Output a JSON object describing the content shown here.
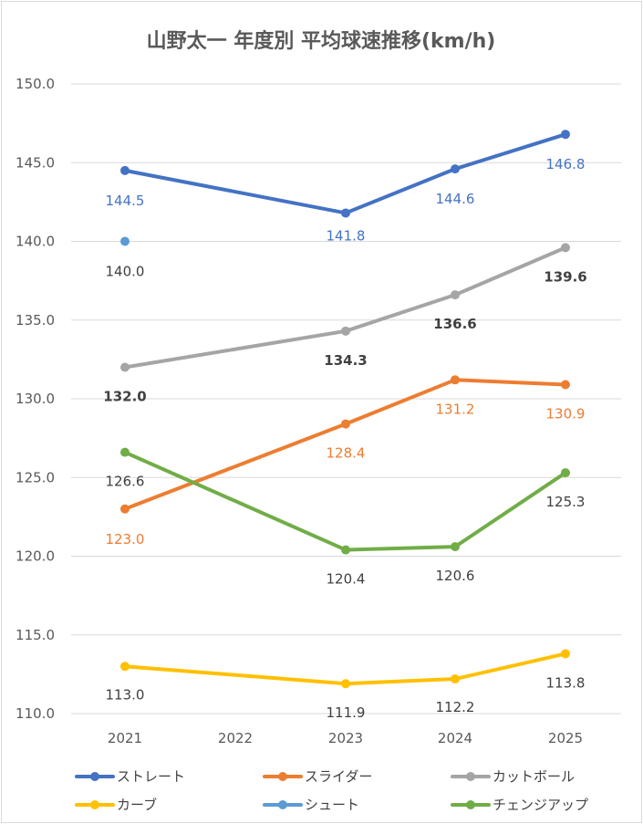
{
  "chart_data": {
    "type": "line",
    "title": "山野太一 年度別 平均球速推移(km/h)",
    "categories": [
      "2021",
      "2022",
      "2023",
      "2024",
      "2025"
    ],
    "ylim": [
      110,
      150
    ],
    "y_ticks": [
      "110.0",
      "115.0",
      "120.0",
      "125.0",
      "130.0",
      "135.0",
      "140.0",
      "145.0",
      "150.0"
    ],
    "grid": true,
    "legend_position": "bottom",
    "series": [
      {
        "name": "ストレート",
        "color": "#4472C4",
        "values": [
          144.5,
          null,
          141.8,
          144.6,
          146.8
        ],
        "labels": [
          "144.5",
          "",
          "141.8",
          "144.6",
          "146.8"
        ],
        "label_color": "#4472C4",
        "label_bold": false
      },
      {
        "name": "スライダー",
        "color": "#ED7D31",
        "values": [
          123.0,
          null,
          128.4,
          131.2,
          130.9
        ],
        "labels": [
          "123.0",
          "",
          "128.4",
          "131.2",
          "130.9"
        ],
        "label_color": "#ED7D31",
        "label_bold": false
      },
      {
        "name": "カットボール",
        "color": "#A5A5A5",
        "values": [
          132.0,
          null,
          134.3,
          136.6,
          139.6
        ],
        "labels": [
          "132.0",
          "",
          "134.3",
          "136.6",
          "139.6"
        ],
        "label_color": "#404040",
        "label_bold": true
      },
      {
        "name": "カーブ",
        "color": "#FFC000",
        "values": [
          113.0,
          null,
          111.9,
          112.2,
          113.8
        ],
        "labels": [
          "113.0",
          "",
          "111.9",
          "112.2",
          "113.8"
        ],
        "label_color": "#404040",
        "label_bold": false
      },
      {
        "name": "シュート",
        "color": "#5B9BD5",
        "values": [
          140.0,
          null,
          null,
          null,
          null
        ],
        "labels": [
          "140.0",
          "",
          "",
          "",
          ""
        ],
        "label_color": "#404040",
        "label_bold": false
      },
      {
        "name": "チェンジアップ",
        "color": "#70AD47",
        "values": [
          126.6,
          null,
          120.4,
          120.6,
          125.3
        ],
        "labels": [
          "126.6",
          "",
          "120.4",
          "120.6",
          "125.3"
        ],
        "label_color": "#404040",
        "label_bold": false
      }
    ]
  }
}
